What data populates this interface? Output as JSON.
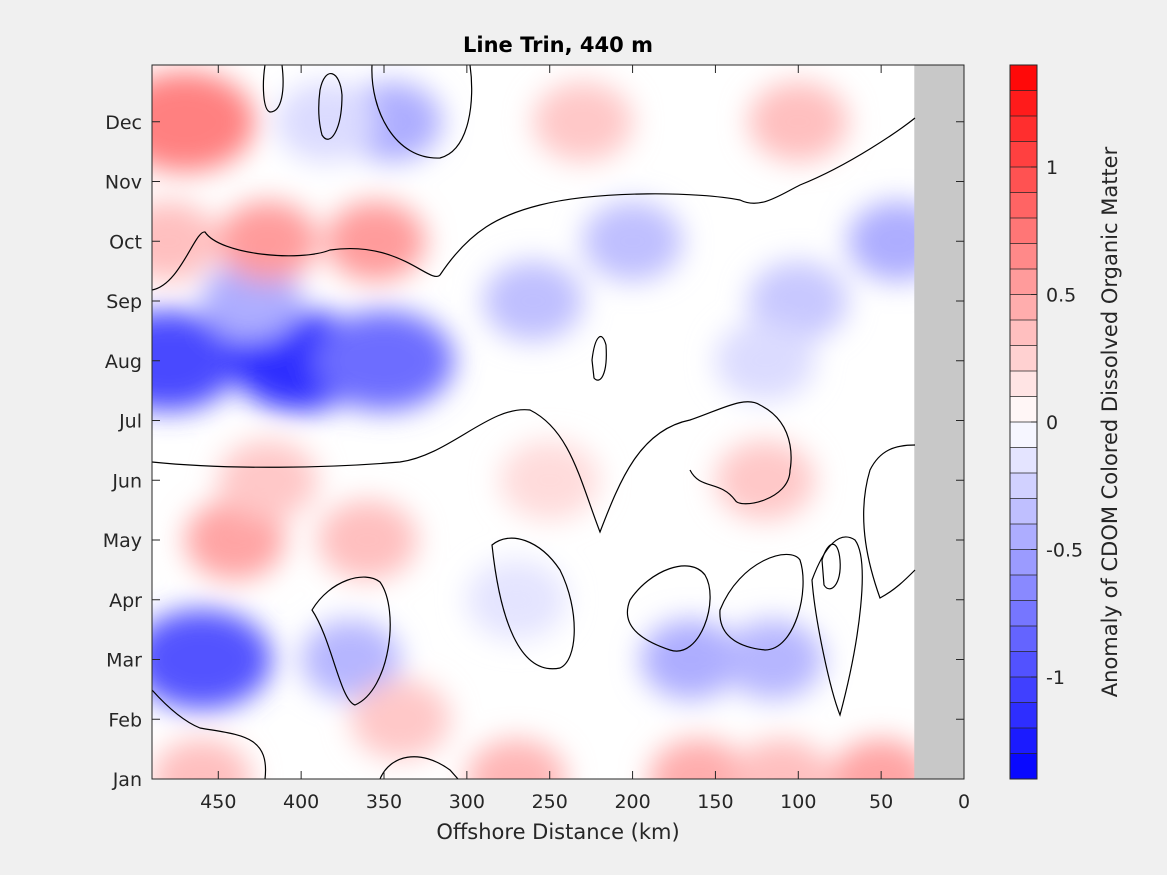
{
  "chart_data": {
    "type": "heatmap",
    "title": "Line Trin, 440 m",
    "xlabel": "Offshore Distance (km)",
    "colorbar_label": "Anomaly of CDOM Colored Dissolved Organic Matter",
    "xlim": [
      490,
      0
    ],
    "x_ticks": [
      450,
      400,
      350,
      300,
      250,
      200,
      150,
      100,
      50,
      0
    ],
    "x_tick_labels": [
      "450",
      "400",
      "350",
      "300",
      "250",
      "200",
      "150",
      "100",
      "50",
      "0"
    ],
    "y_ticks": [
      "Jan",
      "Feb",
      "Mar",
      "Apr",
      "May",
      "Jun",
      "Jul",
      "Aug",
      "Sep",
      "Oct",
      "Nov",
      "Dec"
    ],
    "clim": [
      -1.4,
      1.4
    ],
    "colorbar_ticks": [
      -1,
      -0.5,
      0,
      0.5,
      1
    ],
    "colorbar_tick_labels": [
      "-1",
      "-0.5",
      "0",
      "0.5",
      "1"
    ],
    "colormap": {
      "negative": "#0000ff",
      "zero": "#ffffff",
      "positive": "#ff0000",
      "levels": 28
    },
    "no_data_color": "#c8c8c8",
    "no_data_x_range": [
      30,
      0
    ],
    "contour_levels": [
      0
    ],
    "anomaly_centers": [
      {
        "x": 480,
        "month": "Aug",
        "value": -1.0
      },
      {
        "x": 400,
        "month": "Aug",
        "value": -1.15
      },
      {
        "x": 350,
        "month": "Aug",
        "value": -0.8
      },
      {
        "x": 430,
        "month": "Sep",
        "value": -0.45
      },
      {
        "x": 460,
        "month": "Mar",
        "value": -0.95
      },
      {
        "x": 470,
        "month": "Dec",
        "value": 0.7
      },
      {
        "x": 420,
        "month": "Oct",
        "value": 0.55
      },
      {
        "x": 355,
        "month": "Oct",
        "value": 0.55
      },
      {
        "x": 480,
        "month": "Oct",
        "value": 0.35
      },
      {
        "x": 440,
        "month": "May",
        "value": 0.5
      },
      {
        "x": 360,
        "month": "May",
        "value": 0.35
      },
      {
        "x": 420,
        "month": "Jun",
        "value": 0.3
      },
      {
        "x": 345,
        "month": "Dec",
        "value": -0.45
      },
      {
        "x": 385,
        "month": "Dec",
        "value": -0.2
      },
      {
        "x": 370,
        "month": "Mar",
        "value": -0.4
      },
      {
        "x": 260,
        "month": "Sep",
        "value": -0.35
      },
      {
        "x": 200,
        "month": "Oct",
        "value": -0.35
      },
      {
        "x": 40,
        "month": "Oct",
        "value": -0.45
      },
      {
        "x": 100,
        "month": "Sep",
        "value": -0.3
      },
      {
        "x": 120,
        "month": "Aug",
        "value": -0.2
      },
      {
        "x": 165,
        "month": "Mar",
        "value": -0.45
      },
      {
        "x": 115,
        "month": "Mar",
        "value": -0.4
      },
      {
        "x": 270,
        "month": "Apr",
        "value": -0.15
      },
      {
        "x": 230,
        "month": "Dec",
        "value": 0.3
      },
      {
        "x": 100,
        "month": "Dec",
        "value": 0.35
      },
      {
        "x": 270,
        "month": "Jan",
        "value": 0.4
      },
      {
        "x": 160,
        "month": "Jan",
        "value": 0.45
      },
      {
        "x": 50,
        "month": "Jan",
        "value": 0.5
      },
      {
        "x": 110,
        "month": "Jan",
        "value": 0.35
      },
      {
        "x": 340,
        "month": "Feb",
        "value": 0.3
      },
      {
        "x": 120,
        "month": "Jun",
        "value": 0.3
      },
      {
        "x": 250,
        "month": "Jun",
        "value": 0.2
      },
      {
        "x": 460,
        "month": "Jan",
        "value": 0.35
      }
    ]
  }
}
